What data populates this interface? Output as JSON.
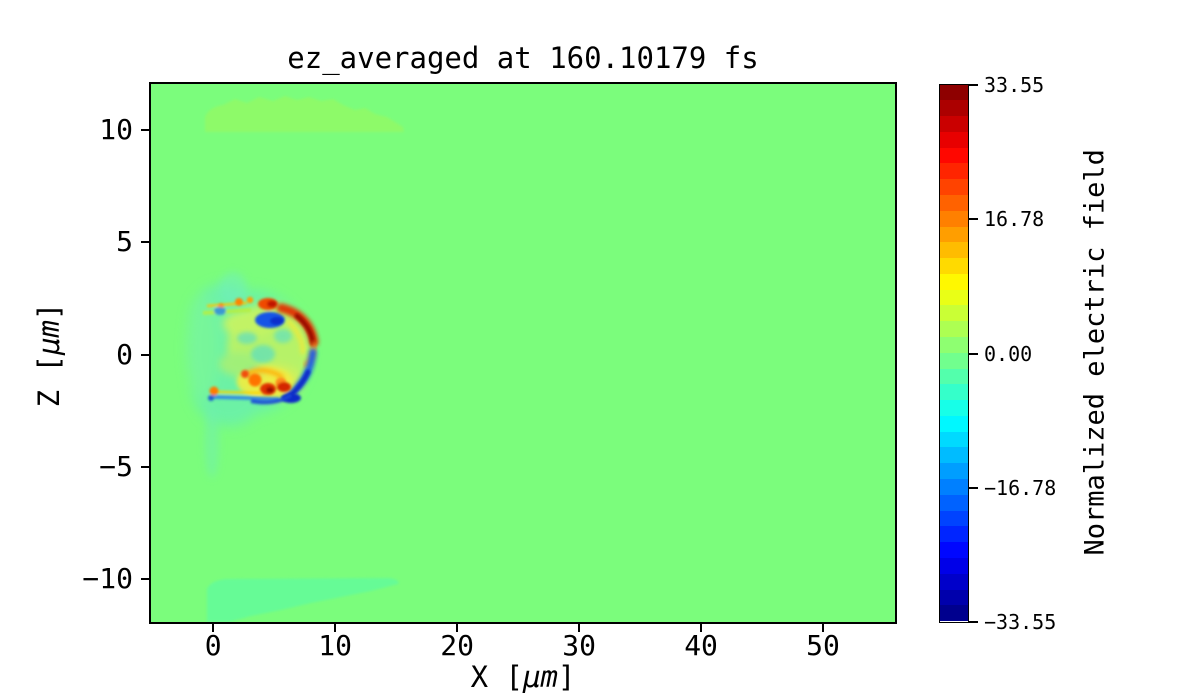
{
  "figure": {
    "background": "#ffffff",
    "text_color": "#000000",
    "spine_color": "#000000"
  },
  "chart_data": {
    "type": "heatmap",
    "title": "ez_averaged at 160.10179 fs",
    "xlabel": {
      "pre": "X [",
      "math": "μm",
      "post": "]"
    },
    "ylabel": {
      "pre": "Z [",
      "math": "μm",
      "post": "]"
    },
    "xlim": [
      -5.1,
      55.9
    ],
    "ylim": [
      -11.9,
      12.05
    ],
    "x_ticks": [
      0,
      10,
      20,
      30,
      40,
      50
    ],
    "x_tick_labels": [
      "0",
      "10",
      "20",
      "30",
      "40",
      "50"
    ],
    "y_ticks": [
      10,
      5,
      0,
      -5,
      -10
    ],
    "y_tick_labels": [
      "10",
      "5",
      "0",
      "−5",
      "−10"
    ],
    "grid": false,
    "legend": "none",
    "colormap": "jet",
    "zero_field_color": "#7bfd7c",
    "colorbar": {
      "label": "Normalized electric field",
      "position": "right",
      "vmin": -33.55,
      "vmax": 33.55,
      "ticks": [
        33.55,
        16.78,
        0.0,
        -16.78,
        -33.55
      ],
      "tick_labels": [
        "33.55",
        "16.78",
        "0.00",
        "−16.78",
        "−33.55"
      ],
      "n_bands": 34
    },
    "features": [
      {
        "name": "background_field",
        "value": 0.0,
        "color": "#7bfd7c",
        "extent": "entire domain x −5.1…55.9 μm, z −11.9…12.05 μm"
      },
      {
        "name": "upper_channel_patch",
        "x_range": [
          -0.5,
          15.5
        ],
        "z_range": [
          9.7,
          11.7
        ],
        "color": "#8efa69",
        "value": "slightly positive (~+1)"
      },
      {
        "name": "lower_channel_patch",
        "x_range": [
          -0.5,
          15.5
        ],
        "z_range": [
          -11.9,
          -9.9
        ],
        "color": "#66fb96",
        "value": "slightly negative (~−1)"
      },
      {
        "name": "wakefield_bubble",
        "x_range": [
          -1.5,
          8.5
        ],
        "z_range": [
          -3.6,
          3.4
        ],
        "description": "turbulent structure: diffuse cyan negative pockets (≈−8) and yellow positive filaments (≈+8) inside; thin yellow/blue sheaths at z≈±1.9 for x≈0…5; strong red arc (≈+30) at front x≈7–8.4, z≈0.5…2 with dark-red core; strong blue arcs (≈−25) at front x≈7–8.4, z≈−2.5…0 and below red blob at z≈1.5; orange-red blob cluster (≈+25) at x≈3–6, z≈−1…−2; faint cyan tail down to z≈−5 near x≈0"
      }
    ]
  }
}
